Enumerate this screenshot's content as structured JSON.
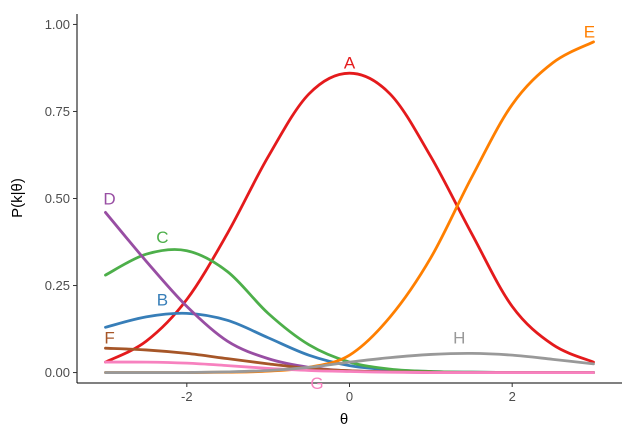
{
  "chart_data": {
    "type": "line",
    "xlabel": "θ",
    "ylabel": "P(k|θ)",
    "xlim": [
      -3.35,
      3.35
    ],
    "ylim": [
      -0.03,
      1.03
    ],
    "xticks": [
      -2,
      0,
      2
    ],
    "xtick_labels": [
      "-2",
      "0",
      "2"
    ],
    "yticks": [
      0.0,
      0.25,
      0.5,
      0.75,
      1.0
    ],
    "ytick_labels": [
      "0.00",
      "0.25",
      "0.50",
      "0.75",
      "1.00"
    ],
    "grid": false,
    "legend": "none",
    "x": [
      -3.0,
      -2.5,
      -2.0,
      -1.5,
      -1.0,
      -0.5,
      0.0,
      0.5,
      1.0,
      1.5,
      2.0,
      2.5,
      3.0
    ],
    "series": [
      {
        "name": "A",
        "color": "#E41A1C",
        "label_at": [
          0.0,
          0.89
        ],
        "values": [
          0.03,
          0.09,
          0.21,
          0.4,
          0.62,
          0.8,
          0.86,
          0.8,
          0.62,
          0.4,
          0.19,
          0.08,
          0.03
        ]
      },
      {
        "name": "B",
        "color": "#377EB8",
        "label_at": [
          -2.3,
          0.21
        ],
        "values": [
          0.13,
          0.16,
          0.17,
          0.15,
          0.1,
          0.05,
          0.02,
          0.008,
          0.003,
          0.001,
          0.0,
          0.0,
          0.0
        ]
      },
      {
        "name": "C",
        "color": "#4DAF4A",
        "label_at": [
          -2.3,
          0.39
        ],
        "values": [
          0.28,
          0.34,
          0.35,
          0.29,
          0.17,
          0.08,
          0.03,
          0.01,
          0.003,
          0.001,
          0.0,
          0.0,
          0.0
        ]
      },
      {
        "name": "D",
        "color": "#984EA3",
        "label_at": [
          -2.95,
          0.5
        ],
        "values": [
          0.46,
          0.32,
          0.19,
          0.09,
          0.04,
          0.015,
          0.005,
          0.002,
          0.0,
          0.0,
          0.0,
          0.0,
          0.0
        ]
      },
      {
        "name": "E",
        "color": "#FF7F00",
        "label_at": [
          2.95,
          0.98
        ],
        "values": [
          0.0,
          0.0,
          0.0,
          0.001,
          0.004,
          0.015,
          0.05,
          0.16,
          0.33,
          0.56,
          0.77,
          0.89,
          0.95
        ]
      },
      {
        "name": "F",
        "color": "#A65628",
        "label_at": [
          -2.95,
          0.1
        ],
        "values": [
          0.07,
          0.065,
          0.055,
          0.04,
          0.025,
          0.012,
          0.005,
          0.002,
          0.001,
          0.0,
          0.0,
          0.0,
          0.0
        ]
      },
      {
        "name": "G",
        "color": "#F781BF",
        "label_at": [
          -0.4,
          -0.03
        ],
        "values": [
          0.03,
          0.03,
          0.027,
          0.02,
          0.012,
          0.006,
          0.003,
          0.001,
          0.0,
          0.0,
          0.0,
          0.0,
          0.0
        ]
      },
      {
        "name": "H",
        "color": "#999999",
        "label_at": [
          1.35,
          0.1
        ],
        "values": [
          0.0,
          0.0,
          0.0,
          0.002,
          0.006,
          0.015,
          0.03,
          0.043,
          0.052,
          0.055,
          0.05,
          0.038,
          0.025
        ]
      }
    ]
  }
}
